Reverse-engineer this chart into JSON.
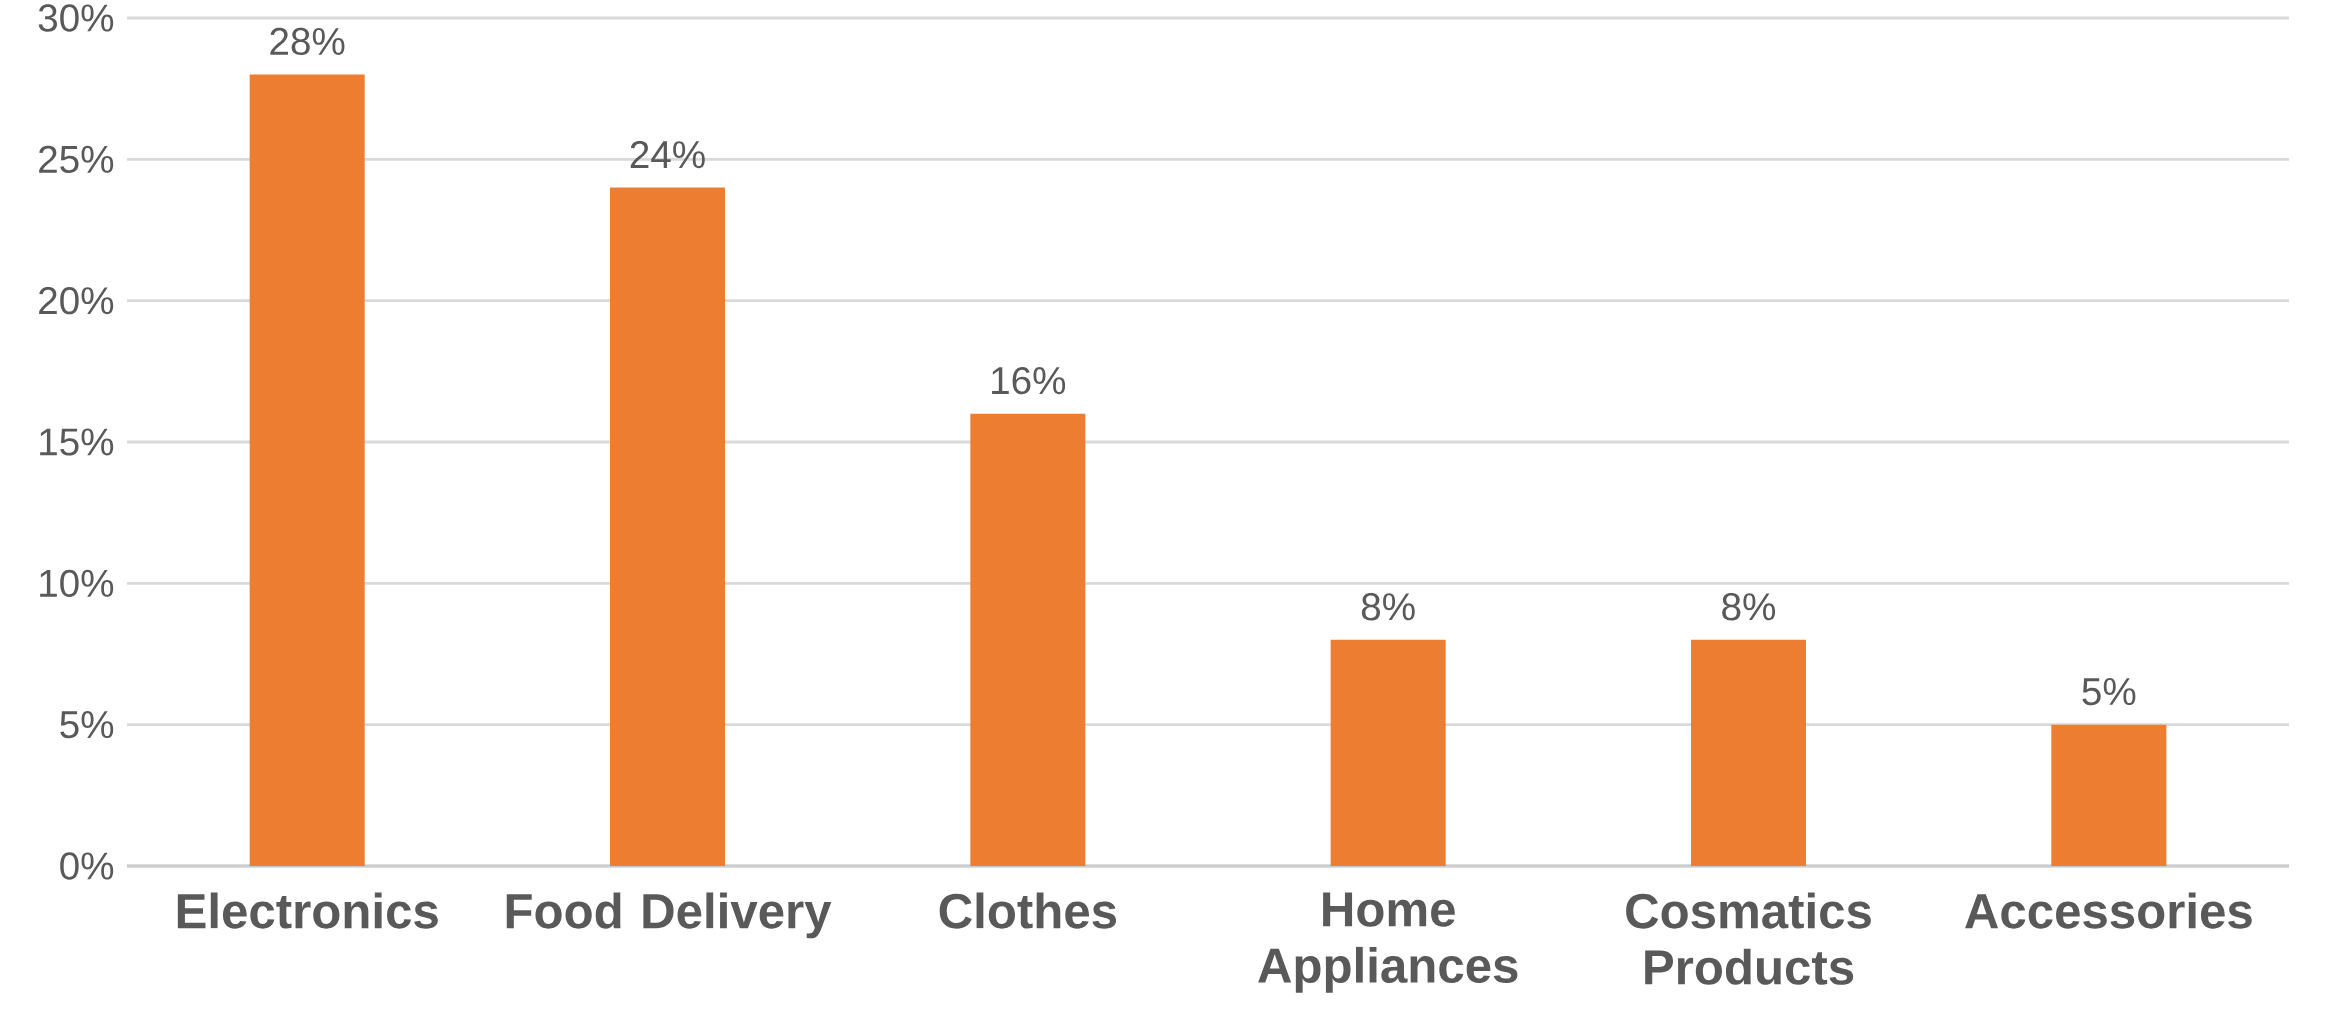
{
  "chart_data": {
    "type": "bar",
    "categories": [
      "Electronics",
      "Food Delivery",
      "Clothes",
      "Home Appliances",
      "Cosmatics Products",
      "Accessories"
    ],
    "values": [
      28,
      24,
      16,
      8,
      8,
      5
    ],
    "value_labels": [
      "28%",
      "24%",
      "16%",
      "8%",
      "8%",
      "5%"
    ],
    "color": "#ed7d31",
    "ylim": [
      0,
      30
    ],
    "yticks": [
      {
        "value": 0,
        "label": "0%"
      },
      {
        "value": 5,
        "label": "5%"
      },
      {
        "value": 10,
        "label": "10%"
      },
      {
        "value": 15,
        "label": "15%"
      },
      {
        "value": 20,
        "label": "20%"
      },
      {
        "value": 25,
        "label": "25%"
      },
      {
        "value": 30,
        "label": "30%"
      }
    ],
    "grid": "y"
  }
}
